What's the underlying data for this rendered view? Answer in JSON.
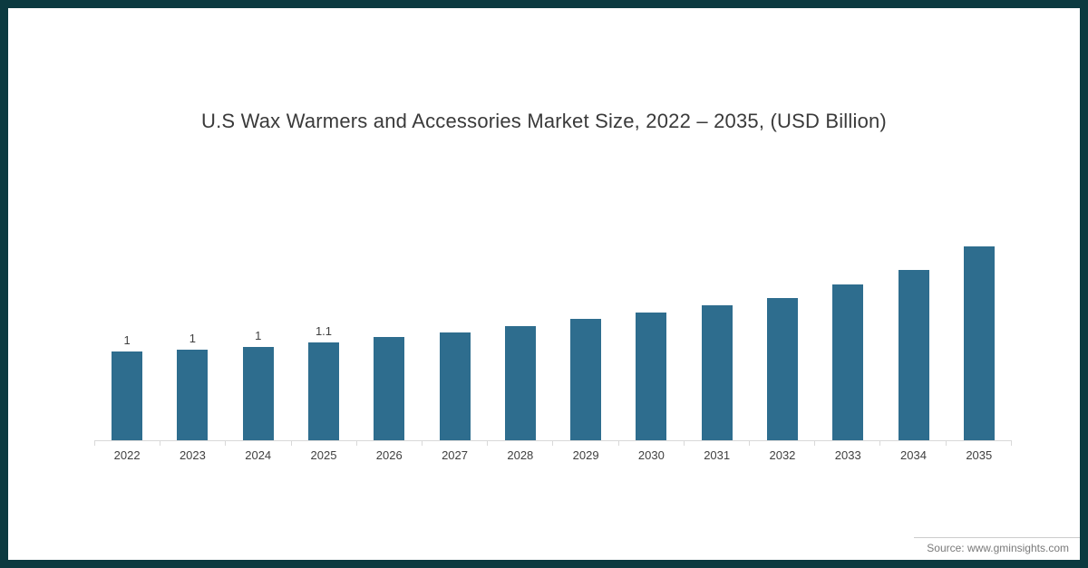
{
  "frame": {
    "border_color": "#0c3a40",
    "background": "#ffffff"
  },
  "chart_data": {
    "type": "bar",
    "title": "U.S Wax Warmers and Accessories Market Size, 2022 – 2035, (USD Billion)",
    "categories": [
      "2022",
      "2023",
      "2024",
      "2025",
      "2026",
      "2027",
      "2028",
      "2029",
      "2030",
      "2031",
      "2032",
      "2033",
      "2034",
      "2035"
    ],
    "values": [
      1,
      1.02,
      1.05,
      1.1,
      1.16,
      1.21,
      1.29,
      1.37,
      1.44,
      1.52,
      1.6,
      1.75,
      1.92,
      2.18
    ],
    "data_labels": [
      "1",
      "1",
      "1",
      "1.1",
      "",
      "",
      "",
      "",
      "",
      "",
      "",
      "",
      "",
      ""
    ],
    "bar_color": "#2e6d8e",
    "xlabel": "",
    "ylabel": "",
    "ylim": [
      0,
      2.4
    ],
    "grid": false,
    "legend": false,
    "axis_color": "#d9d9d9"
  },
  "source": {
    "label": "Source: www.gminsights.com"
  }
}
